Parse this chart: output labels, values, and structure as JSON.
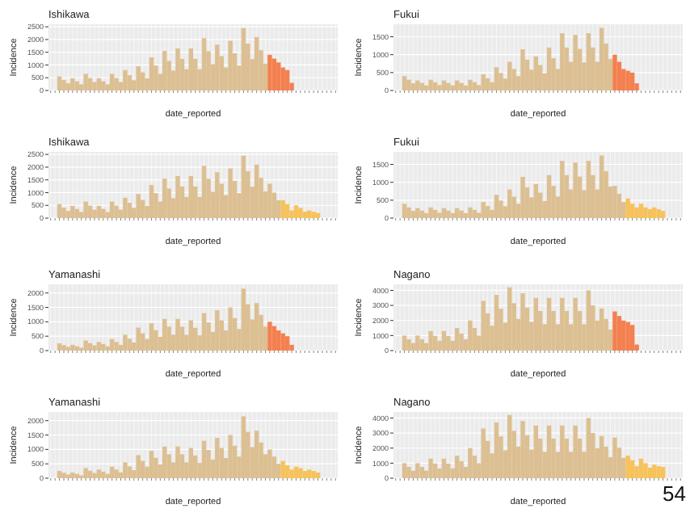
{
  "chart_data": [
    {
      "type": "bar",
      "title": "Ishikawa",
      "xlabel": "date_reported",
      "ylabel": "Incidence",
      "grid": true,
      "ylim": [
        0,
        2600
      ],
      "yticks": [
        0,
        500,
        1000,
        1500,
        2000,
        2500
      ],
      "categories": [
        null,
        null,
        null,
        null,
        null,
        null,
        null,
        null,
        null,
        null,
        null,
        null,
        null,
        null,
        null,
        null,
        null,
        null,
        null,
        null,
        null,
        null,
        null,
        null,
        null,
        null,
        null,
        null,
        null,
        null,
        null,
        null,
        null,
        null,
        null,
        null,
        null,
        null,
        null,
        null,
        null,
        null,
        null,
        null,
        null,
        null,
        null,
        null,
        null,
        null,
        null,
        null,
        null,
        null,
        null,
        null,
        null,
        null,
        null,
        null,
        null,
        null,
        null,
        null,
        null,
        null
      ],
      "series": [
        {
          "color": "#dcbf92",
          "values": [
            null,
            null,
            550,
            410,
            280,
            480,
            360,
            240,
            650,
            490,
            330,
            480,
            360,
            240,
            650,
            490,
            330,
            800,
            600,
            400,
            950,
            710,
            480,
            1300,
            980,
            650,
            1550,
            1160,
            780,
            1650,
            1240,
            830,
            1650,
            1240,
            830,
            2050,
            1540,
            1030,
            1800,
            1350,
            900,
            1950,
            1460,
            980,
            2450,
            1840,
            1230,
            2100,
            1580,
            1050,
            null,
            null,
            null,
            null,
            null,
            null,
            null,
            null,
            null,
            null,
            null,
            null,
            null,
            null,
            null,
            null
          ]
        },
        {
          "color": "#f4804f",
          "values": [
            null,
            null,
            null,
            null,
            null,
            null,
            null,
            null,
            null,
            null,
            null,
            null,
            null,
            null,
            null,
            null,
            null,
            null,
            null,
            null,
            null,
            null,
            null,
            null,
            null,
            null,
            null,
            null,
            null,
            null,
            null,
            null,
            null,
            null,
            null,
            null,
            null,
            null,
            null,
            null,
            null,
            null,
            null,
            null,
            null,
            null,
            null,
            null,
            null,
            null,
            1400,
            1250,
            1100,
            900,
            800,
            300,
            null,
            null,
            null,
            null,
            null,
            null,
            null,
            null,
            null,
            null
          ]
        }
      ]
    },
    {
      "type": "bar",
      "title": "Fukui",
      "xlabel": "date_reported",
      "ylabel": "Incidence",
      "grid": true,
      "ylim": [
        0,
        1850
      ],
      "yticks": [
        0,
        500,
        1000,
        1500
      ],
      "categories": [
        null,
        null,
        null,
        null,
        null,
        null,
        null,
        null,
        null,
        null,
        null,
        null,
        null,
        null,
        null,
        null,
        null,
        null,
        null,
        null,
        null,
        null,
        null,
        null,
        null,
        null,
        null,
        null,
        null,
        null,
        null,
        null,
        null,
        null,
        null,
        null,
        null,
        null,
        null,
        null,
        null,
        null,
        null,
        null,
        null,
        null,
        null,
        null,
        null,
        null,
        null,
        null,
        null,
        null,
        null,
        null,
        null,
        null,
        null,
        null,
        null,
        null,
        null,
        null,
        null,
        null
      ],
      "series": [
        {
          "color": "#dcbf92",
          "values": [
            null,
            null,
            400,
            300,
            200,
            280,
            210,
            140,
            300,
            230,
            150,
            280,
            210,
            140,
            280,
            210,
            140,
            300,
            230,
            150,
            450,
            340,
            230,
            650,
            490,
            330,
            800,
            600,
            400,
            1150,
            860,
            580,
            950,
            710,
            480,
            1200,
            900,
            600,
            1600,
            1200,
            800,
            1550,
            1160,
            780,
            1600,
            1200,
            800,
            1750,
            1310,
            880,
            null,
            null,
            null,
            null,
            null,
            null,
            null,
            null,
            null,
            null,
            null,
            null,
            null,
            null,
            null,
            null
          ]
        },
        {
          "color": "#f4804f",
          "values": [
            null,
            null,
            null,
            null,
            null,
            null,
            null,
            null,
            null,
            null,
            null,
            null,
            null,
            null,
            null,
            null,
            null,
            null,
            null,
            null,
            null,
            null,
            null,
            null,
            null,
            null,
            null,
            null,
            null,
            null,
            null,
            null,
            null,
            null,
            null,
            null,
            null,
            null,
            null,
            null,
            null,
            null,
            null,
            null,
            null,
            null,
            null,
            null,
            null,
            null,
            1000,
            800,
            600,
            550,
            500,
            200,
            null,
            null,
            null,
            null,
            null,
            null,
            null,
            null,
            null,
            null
          ]
        }
      ]
    },
    {
      "type": "bar",
      "title": "Ishikawa",
      "xlabel": "date_reported",
      "ylabel": "Incidence",
      "grid": true,
      "ylim": [
        0,
        2600
      ],
      "yticks": [
        0,
        500,
        1000,
        1500,
        2000,
        2500
      ],
      "categories": [
        null,
        null,
        null,
        null,
        null,
        null,
        null,
        null,
        null,
        null,
        null,
        null,
        null,
        null,
        null,
        null,
        null,
        null,
        null,
        null,
        null,
        null,
        null,
        null,
        null,
        null,
        null,
        null,
        null,
        null,
        null,
        null,
        null,
        null,
        null,
        null,
        null,
        null,
        null,
        null,
        null,
        null,
        null,
        null,
        null,
        null,
        null,
        null,
        null,
        null,
        null,
        null,
        null,
        null,
        null,
        null,
        null,
        null,
        null,
        null,
        null,
        null,
        null,
        null,
        null,
        null
      ],
      "series": [
        {
          "color": "#dcbf92",
          "values": [
            null,
            null,
            550,
            410,
            280,
            480,
            360,
            240,
            650,
            490,
            330,
            480,
            360,
            240,
            650,
            490,
            330,
            800,
            600,
            400,
            950,
            710,
            480,
            1300,
            980,
            650,
            1550,
            1160,
            780,
            1650,
            1240,
            830,
            1650,
            1240,
            830,
            2050,
            1540,
            1030,
            1800,
            1350,
            900,
            1950,
            1460,
            980,
            2450,
            1840,
            1230,
            2100,
            1580,
            1050,
            1350,
            1000,
            700,
            null,
            null,
            null,
            null,
            null,
            null,
            null,
            null,
            null,
            null,
            null,
            null,
            null
          ]
        },
        {
          "color": "#f6c25b",
          "values": [
            null,
            null,
            null,
            null,
            null,
            null,
            null,
            null,
            null,
            null,
            null,
            null,
            null,
            null,
            null,
            null,
            null,
            null,
            null,
            null,
            null,
            null,
            null,
            null,
            null,
            null,
            null,
            null,
            null,
            null,
            null,
            null,
            null,
            null,
            null,
            null,
            null,
            null,
            null,
            null,
            null,
            null,
            null,
            null,
            null,
            null,
            null,
            null,
            null,
            null,
            null,
            null,
            null,
            700,
            550,
            300,
            500,
            400,
            250,
            300,
            250,
            200,
            null,
            null,
            null,
            null
          ]
        }
      ]
    },
    {
      "type": "bar",
      "title": "Fukui",
      "xlabel": "date_reported",
      "ylabel": "Incidence",
      "grid": true,
      "ylim": [
        0,
        1850
      ],
      "yticks": [
        0,
        500,
        1000,
        1500
      ],
      "categories": [
        null,
        null,
        null,
        null,
        null,
        null,
        null,
        null,
        null,
        null,
        null,
        null,
        null,
        null,
        null,
        null,
        null,
        null,
        null,
        null,
        null,
        null,
        null,
        null,
        null,
        null,
        null,
        null,
        null,
        null,
        null,
        null,
        null,
        null,
        null,
        null,
        null,
        null,
        null,
        null,
        null,
        null,
        null,
        null,
        null,
        null,
        null,
        null,
        null,
        null,
        null,
        null,
        null,
        null,
        null,
        null,
        null,
        null,
        null,
        null,
        null,
        null,
        null,
        null,
        null,
        null
      ],
      "series": [
        {
          "color": "#dcbf92",
          "values": [
            null,
            null,
            400,
            300,
            200,
            280,
            210,
            140,
            300,
            230,
            150,
            280,
            210,
            140,
            280,
            210,
            140,
            300,
            230,
            150,
            450,
            340,
            230,
            650,
            490,
            330,
            800,
            600,
            400,
            1150,
            860,
            580,
            950,
            710,
            480,
            1200,
            900,
            600,
            1600,
            1200,
            800,
            1550,
            1160,
            780,
            1600,
            1200,
            800,
            1750,
            1310,
            880,
            900,
            680,
            450,
            null,
            null,
            null,
            null,
            null,
            null,
            null,
            null,
            null,
            null,
            null,
            null,
            null
          ]
        },
        {
          "color": "#f6c25b",
          "values": [
            null,
            null,
            null,
            null,
            null,
            null,
            null,
            null,
            null,
            null,
            null,
            null,
            null,
            null,
            null,
            null,
            null,
            null,
            null,
            null,
            null,
            null,
            null,
            null,
            null,
            null,
            null,
            null,
            null,
            null,
            null,
            null,
            null,
            null,
            null,
            null,
            null,
            null,
            null,
            null,
            null,
            null,
            null,
            null,
            null,
            null,
            null,
            null,
            null,
            null,
            null,
            null,
            null,
            550,
            400,
            300,
            400,
            300,
            250,
            300,
            250,
            200,
            null,
            null,
            null,
            null
          ]
        }
      ]
    },
    {
      "type": "bar",
      "title": "Yamanashi",
      "xlabel": "date_reported",
      "ylabel": "Incidence",
      "grid": true,
      "ylim": [
        0,
        2300
      ],
      "yticks": [
        0,
        500,
        1000,
        1500,
        2000
      ],
      "categories": [
        null,
        null,
        null,
        null,
        null,
        null,
        null,
        null,
        null,
        null,
        null,
        null,
        null,
        null,
        null,
        null,
        null,
        null,
        null,
        null,
        null,
        null,
        null,
        null,
        null,
        null,
        null,
        null,
        null,
        null,
        null,
        null,
        null,
        null,
        null,
        null,
        null,
        null,
        null,
        null,
        null,
        null,
        null,
        null,
        null,
        null,
        null,
        null,
        null,
        null,
        null,
        null,
        null,
        null,
        null,
        null,
        null,
        null,
        null,
        null,
        null,
        null,
        null,
        null,
        null,
        null
      ],
      "series": [
        {
          "color": "#dcbf92",
          "values": [
            null,
            null,
            250,
            190,
            130,
            200,
            150,
            100,
            350,
            260,
            180,
            300,
            230,
            150,
            400,
            300,
            200,
            550,
            410,
            280,
            800,
            600,
            400,
            950,
            710,
            480,
            1100,
            830,
            550,
            1100,
            830,
            550,
            1050,
            790,
            530,
            1300,
            980,
            650,
            1400,
            1050,
            700,
            1500,
            1130,
            750,
            2150,
            1610,
            1080,
            1650,
            1240,
            830,
            null,
            null,
            null,
            null,
            null,
            null,
            null,
            null,
            null,
            null,
            null,
            null,
            null,
            null,
            null,
            null
          ]
        },
        {
          "color": "#f4804f",
          "values": [
            null,
            null,
            null,
            null,
            null,
            null,
            null,
            null,
            null,
            null,
            null,
            null,
            null,
            null,
            null,
            null,
            null,
            null,
            null,
            null,
            null,
            null,
            null,
            null,
            null,
            null,
            null,
            null,
            null,
            null,
            null,
            null,
            null,
            null,
            null,
            null,
            null,
            null,
            null,
            null,
            null,
            null,
            null,
            null,
            null,
            null,
            null,
            null,
            null,
            null,
            1000,
            850,
            700,
            600,
            500,
            200,
            null,
            null,
            null,
            null,
            null,
            null,
            null,
            null,
            null,
            null
          ]
        }
      ]
    },
    {
      "type": "bar",
      "title": "Nagano",
      "xlabel": "date_reported",
      "ylabel": "Incidence",
      "grid": true,
      "ylim": [
        0,
        4400
      ],
      "yticks": [
        0,
        1000,
        2000,
        3000,
        4000
      ],
      "categories": [
        null,
        null,
        null,
        null,
        null,
        null,
        null,
        null,
        null,
        null,
        null,
        null,
        null,
        null,
        null,
        null,
        null,
        null,
        null,
        null,
        null,
        null,
        null,
        null,
        null,
        null,
        null,
        null,
        null,
        null,
        null,
        null,
        null,
        null,
        null,
        null,
        null,
        null,
        null,
        null,
        null,
        null,
        null,
        null,
        null,
        null,
        null,
        null,
        null,
        null,
        null,
        null,
        null,
        null,
        null,
        null,
        null,
        null,
        null,
        null,
        null,
        null,
        null,
        null,
        null,
        null
      ],
      "series": [
        {
          "color": "#dcbf92",
          "values": [
            null,
            null,
            1000,
            750,
            500,
            1000,
            750,
            500,
            1300,
            980,
            650,
            1300,
            980,
            650,
            1500,
            1130,
            750,
            2000,
            1500,
            1000,
            3300,
            2480,
            1650,
            3700,
            2780,
            1850,
            4200,
            3150,
            2100,
            3800,
            2850,
            1900,
            3500,
            2630,
            1750,
            3500,
            2630,
            1750,
            3500,
            2630,
            1750,
            3500,
            2630,
            1750,
            4000,
            3000,
            2000,
            2800,
            2100,
            1400,
            null,
            null,
            null,
            null,
            null,
            null,
            null,
            null,
            null,
            null,
            null,
            null,
            null,
            null,
            null,
            null
          ]
        },
        {
          "color": "#f4804f",
          "values": [
            null,
            null,
            null,
            null,
            null,
            null,
            null,
            null,
            null,
            null,
            null,
            null,
            null,
            null,
            null,
            null,
            null,
            null,
            null,
            null,
            null,
            null,
            null,
            null,
            null,
            null,
            null,
            null,
            null,
            null,
            null,
            null,
            null,
            null,
            null,
            null,
            null,
            null,
            null,
            null,
            null,
            null,
            null,
            null,
            null,
            null,
            null,
            null,
            null,
            null,
            2600,
            2300,
            2000,
            1900,
            1700,
            400,
            null,
            null,
            null,
            null,
            null,
            null,
            null,
            null,
            null,
            null
          ]
        }
      ]
    },
    {
      "type": "bar",
      "title": "Yamanashi",
      "xlabel": "date_reported",
      "ylabel": "Incidence",
      "grid": true,
      "ylim": [
        0,
        2300
      ],
      "yticks": [
        0,
        500,
        1000,
        1500,
        2000
      ],
      "categories": [
        null,
        null,
        null,
        null,
        null,
        null,
        null,
        null,
        null,
        null,
        null,
        null,
        null,
        null,
        null,
        null,
        null,
        null,
        null,
        null,
        null,
        null,
        null,
        null,
        null,
        null,
        null,
        null,
        null,
        null,
        null,
        null,
        null,
        null,
        null,
        null,
        null,
        null,
        null,
        null,
        null,
        null,
        null,
        null,
        null,
        null,
        null,
        null,
        null,
        null,
        null,
        null,
        null,
        null,
        null,
        null,
        null,
        null,
        null,
        null,
        null,
        null,
        null,
        null,
        null,
        null
      ],
      "series": [
        {
          "color": "#dcbf92",
          "values": [
            null,
            null,
            250,
            190,
            130,
            200,
            150,
            100,
            350,
            260,
            180,
            300,
            230,
            150,
            400,
            300,
            200,
            550,
            410,
            280,
            800,
            600,
            400,
            950,
            710,
            480,
            1100,
            830,
            550,
            1100,
            830,
            550,
            1050,
            790,
            530,
            1300,
            980,
            650,
            1400,
            1050,
            700,
            1500,
            1130,
            750,
            2150,
            1610,
            1080,
            1650,
            1240,
            830,
            1000,
            750,
            500,
            null,
            null,
            null,
            null,
            null,
            null,
            null,
            null,
            null,
            null,
            null,
            null,
            null
          ]
        },
        {
          "color": "#f6c25b",
          "values": [
            null,
            null,
            null,
            null,
            null,
            null,
            null,
            null,
            null,
            null,
            null,
            null,
            null,
            null,
            null,
            null,
            null,
            null,
            null,
            null,
            null,
            null,
            null,
            null,
            null,
            null,
            null,
            null,
            null,
            null,
            null,
            null,
            null,
            null,
            null,
            null,
            null,
            null,
            null,
            null,
            null,
            null,
            null,
            null,
            null,
            null,
            null,
            null,
            null,
            null,
            null,
            null,
            null,
            600,
            450,
            300,
            400,
            350,
            250,
            300,
            250,
            200,
            null,
            null,
            null,
            null
          ]
        }
      ]
    },
    {
      "type": "bar",
      "title": "Nagano",
      "xlabel": "date_reported",
      "ylabel": "Incidence",
      "grid": true,
      "ylim": [
        0,
        4400
      ],
      "yticks": [
        0,
        1000,
        2000,
        3000,
        4000
      ],
      "annotations": [
        "54"
      ],
      "categories": [
        null,
        null,
        null,
        null,
        null,
        null,
        null,
        null,
        null,
        null,
        null,
        null,
        null,
        null,
        null,
        null,
        null,
        null,
        null,
        null,
        null,
        null,
        null,
        null,
        null,
        null,
        null,
        null,
        null,
        null,
        null,
        null,
        null,
        null,
        null,
        null,
        null,
        null,
        null,
        null,
        null,
        null,
        null,
        null,
        null,
        null,
        null,
        null,
        null,
        null,
        null,
        null,
        null,
        null,
        null,
        null,
        null,
        null,
        null,
        null,
        null,
        null,
        null,
        null,
        null,
        null
      ],
      "series": [
        {
          "color": "#dcbf92",
          "values": [
            null,
            null,
            1000,
            750,
            500,
            1000,
            750,
            500,
            1300,
            980,
            650,
            1300,
            980,
            650,
            1500,
            1130,
            750,
            2000,
            1500,
            1000,
            3300,
            2480,
            1650,
            3700,
            2780,
            1850,
            4200,
            3150,
            2100,
            3800,
            2850,
            1900,
            3500,
            2630,
            1750,
            3500,
            2630,
            1750,
            3500,
            2630,
            1750,
            3500,
            2630,
            1750,
            4000,
            3000,
            2000,
            2800,
            2100,
            1400,
            2700,
            2030,
            1350,
            null,
            null,
            null,
            null,
            null,
            null,
            null,
            null,
            null,
            null,
            null,
            null,
            null
          ]
        },
        {
          "color": "#f6c25b",
          "values": [
            null,
            null,
            null,
            null,
            null,
            null,
            null,
            null,
            null,
            null,
            null,
            null,
            null,
            null,
            null,
            null,
            null,
            null,
            null,
            null,
            null,
            null,
            null,
            null,
            null,
            null,
            null,
            null,
            null,
            null,
            null,
            null,
            null,
            null,
            null,
            null,
            null,
            null,
            null,
            null,
            null,
            null,
            null,
            null,
            null,
            null,
            null,
            null,
            null,
            null,
            null,
            null,
            null,
            1500,
            1200,
            800,
            1300,
            1000,
            700,
            900,
            800,
            750,
            null,
            null,
            null,
            null
          ]
        }
      ]
    }
  ]
}
